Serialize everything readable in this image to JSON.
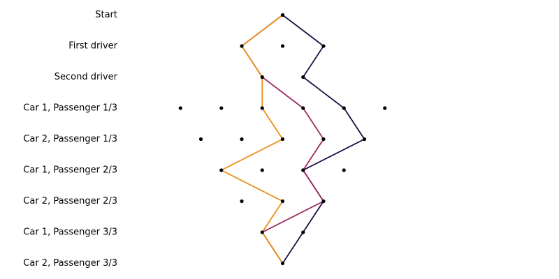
{
  "chart_data": {
    "type": "line",
    "title": "",
    "levels": [
      "Start",
      "First driver",
      "Second driver",
      "Car 1, Passenger 1/3",
      "Car 2, Passenger 1/3",
      "Car 1, Passenger 2/3",
      "Car 2, Passenger 2/3",
      "Car 1, Passenger 3/3",
      "Car 2, Passenger 3/3"
    ],
    "nodes": [
      {
        "level": 0,
        "x": 0
      },
      {
        "level": 1,
        "x": -1
      },
      {
        "level": 1,
        "x": 0
      },
      {
        "level": 1,
        "x": 1
      },
      {
        "level": 2,
        "x": -0.5
      },
      {
        "level": 2,
        "x": 0.5
      },
      {
        "level": 3,
        "x": -2.5
      },
      {
        "level": 3,
        "x": -1.5
      },
      {
        "level": 3,
        "x": -0.5
      },
      {
        "level": 3,
        "x": 0.5
      },
      {
        "level": 3,
        "x": 1.5
      },
      {
        "level": 3,
        "x": 2.5
      },
      {
        "level": 4,
        "x": -2
      },
      {
        "level": 4,
        "x": -1
      },
      {
        "level": 4,
        "x": 0
      },
      {
        "level": 4,
        "x": 1
      },
      {
        "level": 4,
        "x": 2
      },
      {
        "level": 5,
        "x": -1.5
      },
      {
        "level": 5,
        "x": -0.5
      },
      {
        "level": 5,
        "x": 0.5
      },
      {
        "level": 5,
        "x": 1.5
      },
      {
        "level": 6,
        "x": -1
      },
      {
        "level": 6,
        "x": 0
      },
      {
        "level": 6,
        "x": 1
      },
      {
        "level": 7,
        "x": -0.5
      },
      {
        "level": 7,
        "x": 0.5
      },
      {
        "level": 8,
        "x": 0
      }
    ],
    "paths": [
      {
        "color": "#1c1044",
        "x": [
          0,
          1,
          0.5,
          1.5,
          2,
          0.5,
          1,
          0.5,
          0
        ]
      },
      {
        "color": "#9b2a63",
        "x": [
          0,
          -1,
          -0.5,
          0.5,
          1,
          0.5,
          1,
          -0.5,
          0
        ]
      },
      {
        "color": "#ee8d1a",
        "x": [
          0,
          -1,
          -0.5,
          -0.5,
          0,
          -1.5,
          0,
          -0.5,
          0
        ]
      }
    ]
  }
}
